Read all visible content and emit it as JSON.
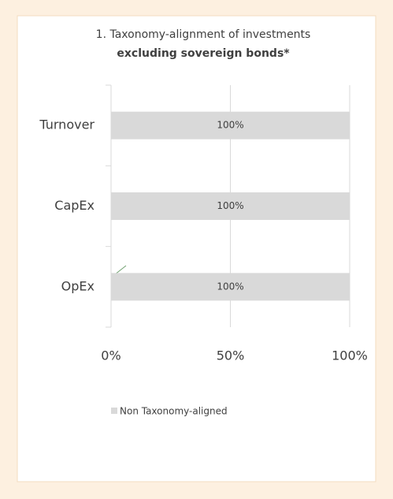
{
  "chart_data": {
    "type": "bar",
    "orientation": "horizontal",
    "title": "1. Taxonomy-alignment of investments",
    "subtitle": "excluding sovereign bonds*",
    "categories": [
      "Turnover",
      "CapEx",
      "OpEx"
    ],
    "series": [
      {
        "name": "Non Taxonomy-aligned",
        "color": "#d9d9d9",
        "values": [
          100,
          100,
          100
        ],
        "value_labels": [
          "100%",
          "100%",
          "100%"
        ]
      }
    ],
    "xlim": [
      0,
      100
    ],
    "xticks": [
      {
        "value": 0,
        "label": "0%"
      },
      {
        "value": 50,
        "label": "50%"
      },
      {
        "value": 100,
        "label": "100%"
      }
    ],
    "grid": true,
    "legend": "bottom"
  }
}
